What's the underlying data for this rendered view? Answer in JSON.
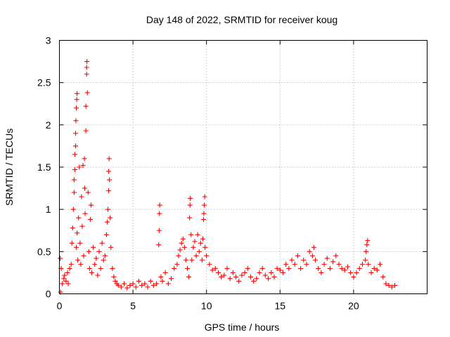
{
  "chart_data": {
    "type": "scatter",
    "title": "Day 148 of 2022, SRMTID for receiver koug",
    "xlabel": "GPS time / hours",
    "ylabel": "SRMTID / TECUs",
    "xlim": [
      0,
      25
    ],
    "ylim": [
      0,
      3
    ],
    "xticks": [
      0,
      5,
      10,
      15,
      20
    ],
    "yticks": [
      0,
      0.5,
      1,
      1.5,
      2,
      2.5,
      3
    ],
    "xtick_labels": [
      "0",
      "5",
      "10",
      "15",
      "20"
    ],
    "ytick_labels": [
      "0",
      "0.5",
      "1",
      "1.5",
      "2",
      "2.5",
      "3"
    ],
    "grid": true,
    "marker": "+",
    "color": "#ff0000",
    "series": [
      {
        "name": "SRMTID",
        "points": [
          [
            0.05,
            0.42
          ],
          [
            0.08,
            0.02
          ],
          [
            0.12,
            0.3
          ],
          [
            0.2,
            0.12
          ],
          [
            0.3,
            0.18
          ],
          [
            0.35,
            0.22
          ],
          [
            0.45,
            0.15
          ],
          [
            0.55,
            0.25
          ],
          [
            0.6,
            0.12
          ],
          [
            0.7,
            0.3
          ],
          [
            0.8,
            0.35
          ],
          [
            0.85,
            0.6
          ],
          [
            0.9,
            0.78
          ],
          [
            0.95,
            1.0
          ],
          [
            1.0,
            1.2
          ],
          [
            1.0,
            1.35
          ],
          [
            1.05,
            1.47
          ],
          [
            1.05,
            1.65
          ],
          [
            1.1,
            1.75
          ],
          [
            1.1,
            1.9
          ],
          [
            1.12,
            2.05
          ],
          [
            1.15,
            2.2
          ],
          [
            1.18,
            2.3
          ],
          [
            1.2,
            2.37
          ],
          [
            1.15,
            0.55
          ],
          [
            1.2,
            0.72
          ],
          [
            1.25,
            0.4
          ],
          [
            1.3,
            0.9
          ],
          [
            1.35,
            1.5
          ],
          [
            1.4,
            0.6
          ],
          [
            1.45,
            0.35
          ],
          [
            1.5,
            1.15
          ],
          [
            1.55,
            0.8
          ],
          [
            1.6,
            1.52
          ],
          [
            1.65,
            0.45
          ],
          [
            1.7,
            1.6
          ],
          [
            1.72,
            1.25
          ],
          [
            1.75,
            0.95
          ],
          [
            1.8,
            1.93
          ],
          [
            1.8,
            2.22
          ],
          [
            1.85,
            2.6
          ],
          [
            1.85,
            2.68
          ],
          [
            1.87,
            2.75
          ],
          [
            1.9,
            2.38
          ],
          [
            1.95,
            1.2
          ],
          [
            2.0,
            0.5
          ],
          [
            2.05,
            0.3
          ],
          [
            2.1,
            0.88
          ],
          [
            2.15,
            1.05
          ],
          [
            2.2,
            0.25
          ],
          [
            2.3,
            0.55
          ],
          [
            2.4,
            0.35
          ],
          [
            2.5,
            0.42
          ],
          [
            2.6,
            0.22
          ],
          [
            2.7,
            0.5
          ],
          [
            2.8,
            0.3
          ],
          [
            2.9,
            0.6
          ],
          [
            3.0,
            0.4
          ],
          [
            3.1,
            0.45
          ],
          [
            3.2,
            0.7
          ],
          [
            3.25,
            0.85
          ],
          [
            3.3,
            1.0
          ],
          [
            3.35,
            1.22
          ],
          [
            3.35,
            1.45
          ],
          [
            3.38,
            1.6
          ],
          [
            3.4,
            1.35
          ],
          [
            3.45,
            0.9
          ],
          [
            3.5,
            0.55
          ],
          [
            3.6,
            0.3
          ],
          [
            3.7,
            0.2
          ],
          [
            3.8,
            0.15
          ],
          [
            3.9,
            0.12
          ],
          [
            4.0,
            0.1
          ],
          [
            4.2,
            0.08
          ],
          [
            4.4,
            0.12
          ],
          [
            4.6,
            0.07
          ],
          [
            4.8,
            0.1
          ],
          [
            5.0,
            0.12
          ],
          [
            5.2,
            0.08
          ],
          [
            5.4,
            0.15
          ],
          [
            5.6,
            0.1
          ],
          [
            5.8,
            0.12
          ],
          [
            6.0,
            0.08
          ],
          [
            6.2,
            0.15
          ],
          [
            6.4,
            0.1
          ],
          [
            6.6,
            0.12
          ],
          [
            6.75,
            0.58
          ],
          [
            6.78,
            0.75
          ],
          [
            6.8,
            0.95
          ],
          [
            6.82,
            1.05
          ],
          [
            6.9,
            0.2
          ],
          [
            7.0,
            0.15
          ],
          [
            7.2,
            0.25
          ],
          [
            7.4,
            0.12
          ],
          [
            7.6,
            0.18
          ],
          [
            7.8,
            0.3
          ],
          [
            8.0,
            0.35
          ],
          [
            8.1,
            0.45
          ],
          [
            8.2,
            0.52
          ],
          [
            8.3,
            0.6
          ],
          [
            8.4,
            0.65
          ],
          [
            8.5,
            0.55
          ],
          [
            8.6,
            0.4
          ],
          [
            8.7,
            0.3
          ],
          [
            8.8,
            0.2
          ],
          [
            8.85,
            0.9
          ],
          [
            8.88,
            1.05
          ],
          [
            8.9,
            1.13
          ],
          [
            8.95,
            0.7
          ],
          [
            9.0,
            0.4
          ],
          [
            9.1,
            0.55
          ],
          [
            9.2,
            0.62
          ],
          [
            9.3,
            0.45
          ],
          [
            9.4,
            0.7
          ],
          [
            9.5,
            0.5
          ],
          [
            9.6,
            0.6
          ],
          [
            9.7,
            0.4
          ],
          [
            9.75,
            0.65
          ],
          [
            9.8,
            0.88
          ],
          [
            9.82,
            0.95
          ],
          [
            9.85,
            1.05
          ],
          [
            9.88,
            1.15
          ],
          [
            9.9,
            0.55
          ],
          [
            10.0,
            0.45
          ],
          [
            10.2,
            0.35
          ],
          [
            10.4,
            0.28
          ],
          [
            10.6,
            0.3
          ],
          [
            10.8,
            0.25
          ],
          [
            11.0,
            0.2
          ],
          [
            11.2,
            0.22
          ],
          [
            11.4,
            0.3
          ],
          [
            11.6,
            0.18
          ],
          [
            11.8,
            0.25
          ],
          [
            12.0,
            0.2
          ],
          [
            12.2,
            0.15
          ],
          [
            12.4,
            0.22
          ],
          [
            12.6,
            0.25
          ],
          [
            12.8,
            0.3
          ],
          [
            13.0,
            0.2
          ],
          [
            13.2,
            0.15
          ],
          [
            13.4,
            0.18
          ],
          [
            13.6,
            0.25
          ],
          [
            13.8,
            0.3
          ],
          [
            14.0,
            0.22
          ],
          [
            14.2,
            0.18
          ],
          [
            14.4,
            0.25
          ],
          [
            14.6,
            0.2
          ],
          [
            14.8,
            0.3
          ],
          [
            15.0,
            0.28
          ],
          [
            15.2,
            0.25
          ],
          [
            15.4,
            0.35
          ],
          [
            15.6,
            0.3
          ],
          [
            15.8,
            0.4
          ],
          [
            16.0,
            0.35
          ],
          [
            16.2,
            0.45
          ],
          [
            16.4,
            0.3
          ],
          [
            16.6,
            0.4
          ],
          [
            16.8,
            0.35
          ],
          [
            17.0,
            0.5
          ],
          [
            17.2,
            0.45
          ],
          [
            17.3,
            0.55
          ],
          [
            17.4,
            0.4
          ],
          [
            17.6,
            0.3
          ],
          [
            17.8,
            0.25
          ],
          [
            18.0,
            0.35
          ],
          [
            18.2,
            0.42
          ],
          [
            18.4,
            0.3
          ],
          [
            18.6,
            0.38
          ],
          [
            18.8,
            0.45
          ],
          [
            19.0,
            0.35
          ],
          [
            19.2,
            0.3
          ],
          [
            19.4,
            0.28
          ],
          [
            19.6,
            0.32
          ],
          [
            19.8,
            0.25
          ],
          [
            20.0,
            0.2
          ],
          [
            20.2,
            0.25
          ],
          [
            20.4,
            0.3
          ],
          [
            20.6,
            0.35
          ],
          [
            20.8,
            0.4
          ],
          [
            20.85,
            0.5
          ],
          [
            20.9,
            0.58
          ],
          [
            20.95,
            0.63
          ],
          [
            21.0,
            0.35
          ],
          [
            21.2,
            0.25
          ],
          [
            21.4,
            0.3
          ],
          [
            21.6,
            0.28
          ],
          [
            21.8,
            0.35
          ],
          [
            22.0,
            0.2
          ],
          [
            22.2,
            0.12
          ],
          [
            22.4,
            0.1
          ],
          [
            22.6,
            0.08
          ],
          [
            22.8,
            0.1
          ]
        ]
      }
    ]
  }
}
